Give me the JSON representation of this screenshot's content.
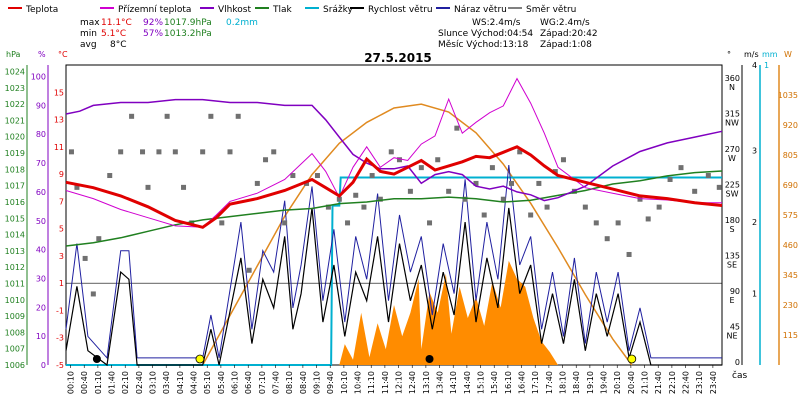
{
  "chart_data": {
    "type": "line",
    "title": "27.5.2015",
    "legend": [
      {
        "name": "Teplota",
        "color": "#e00000"
      },
      {
        "name": "Přízemní teplota",
        "color": "#d000d0"
      },
      {
        "name": "Vlhkost",
        "color": "#8000c0"
      },
      {
        "name": "Tlak",
        "color": "#208020"
      },
      {
        "name": "Srážky",
        "color": "#00b0d0"
      },
      {
        "name": "Rychlost větru",
        "color": "#000000"
      },
      {
        "name": "Náraz větru",
        "color": "#2020a0"
      },
      {
        "name": "Směr větru",
        "color": "#808080"
      }
    ],
    "stats": {
      "max_label": "max",
      "max_temp": "11.1°C",
      "max_hum": "92%",
      "max_press": "1017.9hPa",
      "max_rain": "0.2mm",
      "min_label": "min",
      "min_temp": "5.1°C",
      "min_hum": "57%",
      "min_press": "1013.2hPa",
      "avg_label": "avg",
      "avg_temp": "8°C"
    },
    "info": {
      "ws": "WS:2.4m/s",
      "wg": "WG:2.4m/s",
      "sun": "Slunce Východ:04:54",
      "sun_set": "Západ:20:42",
      "moon": "Měsíc Východ:13:18",
      "moon_set": "Západ:1:08"
    },
    "axes": {
      "hpa_unit": "hPa",
      "pct_unit": "%",
      "degc_unit": "°C",
      "deg_unit": "°",
      "ms_unit": "m/s",
      "mm_unit": "mm",
      "w_unit": "W",
      "time_label": "čas",
      "hpa_ticks": [
        "1024",
        "1023",
        "1022",
        "1021",
        "1020",
        "1019",
        "1018",
        "1017",
        "1016",
        "1015",
        "1014",
        "1013",
        "1012",
        "1011",
        "1010",
        "1009",
        "1008",
        "1007",
        "1006"
      ],
      "pct_ticks": [
        "100",
        "90",
        "80",
        "70",
        "60",
        "50",
        "40",
        "30",
        "20",
        "10",
        "0"
      ],
      "degc_ticks": [
        "15",
        "13",
        "11",
        "9",
        "7",
        "5",
        "3",
        "1",
        "-1",
        "-3",
        "-5"
      ],
      "deg_ticks": [
        "360",
        "315",
        "270",
        "225",
        "180",
        "135",
        "90",
        "45",
        "0"
      ],
      "dir_ticks": [
        "N",
        "NW",
        "W",
        "SW",
        "S",
        "SE",
        "E",
        "NE",
        ""
      ],
      "ms_ticks": [
        "3",
        "2",
        "1"
      ],
      "ms_top": "4",
      "mm_top": "1",
      "w_ticks": [
        "1035",
        "920",
        "805",
        "690",
        "575",
        "460",
        "345",
        "230",
        "115"
      ],
      "time_ticks": [
        "00:10",
        "00:40",
        "01:10",
        "01:40",
        "02:10",
        "02:40",
        "03:10",
        "03:40",
        "04:10",
        "04:40",
        "05:10",
        "05:40",
        "06:10",
        "06:40",
        "07:10",
        "07:40",
        "08:10",
        "08:40",
        "09:10",
        "09:40",
        "10:10",
        "10:40",
        "11:10",
        "11:40",
        "12:10",
        "12:40",
        "13:10",
        "13:40",
        "14:10",
        "14:40",
        "15:10",
        "15:40",
        "16:10",
        "16:40",
        "17:10",
        "17:40",
        "18:10",
        "18:40",
        "19:10",
        "19:40",
        "20:10",
        "20:40",
        "21:10",
        "21:40",
        "22:10",
        "22:40",
        "23:10",
        "23:40"
      ]
    },
    "ranges": {
      "hours": [
        0,
        24
      ],
      "temp": [
        -5,
        17
      ],
      "hum": [
        0,
        104
      ],
      "press": [
        1006,
        1024.4
      ],
      "wind": [
        0,
        4.2
      ],
      "dir": [
        0,
        380
      ],
      "rad": [
        0,
        1150
      ],
      "rain": [
        0,
        1
      ]
    },
    "temperature": [
      [
        0,
        8.4
      ],
      [
        1,
        8.0
      ],
      [
        2,
        7.4
      ],
      [
        3,
        6.6
      ],
      [
        4,
        5.6
      ],
      [
        5,
        5.1
      ],
      [
        5.5,
        5.8
      ],
      [
        6,
        6.8
      ],
      [
        7,
        7.2
      ],
      [
        8,
        7.8
      ],
      [
        9,
        8.6
      ],
      [
        9.5,
        8.0
      ],
      [
        10,
        7.4
      ],
      [
        10.5,
        8.4
      ],
      [
        11,
        10.1
      ],
      [
        11.5,
        9.2
      ],
      [
        12,
        9.0
      ],
      [
        12.5,
        9.5
      ],
      [
        13,
        10.0
      ],
      [
        13.5,
        9.3
      ],
      [
        14,
        9.6
      ],
      [
        14.5,
        9.9
      ],
      [
        15,
        10.3
      ],
      [
        15.5,
        10.2
      ],
      [
        16,
        10.6
      ],
      [
        16.5,
        11.0
      ],
      [
        17,
        10.4
      ],
      [
        17.5,
        9.6
      ],
      [
        18,
        8.9
      ],
      [
        19,
        8.4
      ],
      [
        20,
        7.9
      ],
      [
        21,
        7.4
      ],
      [
        22,
        7.2
      ],
      [
        23,
        6.9
      ],
      [
        24,
        6.7
      ]
    ],
    "ground_temperature": [
      [
        0,
        7.8
      ],
      [
        1,
        7.2
      ],
      [
        2,
        6.4
      ],
      [
        3,
        5.8
      ],
      [
        4,
        5.2
      ],
      [
        5,
        5.1
      ],
      [
        5.5,
        6.0
      ],
      [
        6,
        7.0
      ],
      [
        7,
        7.6
      ],
      [
        8,
        8.6
      ],
      [
        9,
        10.5
      ],
      [
        9.5,
        9.2
      ],
      [
        10,
        7.3
      ],
      [
        10.5,
        9.5
      ],
      [
        11,
        11.0
      ],
      [
        11.5,
        9.5
      ],
      [
        12,
        10.2
      ],
      [
        12.5,
        10.0
      ],
      [
        13,
        11.2
      ],
      [
        13.5,
        11.8
      ],
      [
        14,
        14.5
      ],
      [
        14.5,
        12.0
      ],
      [
        15,
        12.8
      ],
      [
        15.5,
        13.5
      ],
      [
        16,
        14.0
      ],
      [
        16.5,
        16.0
      ],
      [
        17,
        14.2
      ],
      [
        17.5,
        12.0
      ],
      [
        18,
        9.5
      ],
      [
        19,
        8.0
      ],
      [
        20,
        7.6
      ],
      [
        21,
        7.2
      ],
      [
        22,
        7.1
      ],
      [
        23,
        6.9
      ],
      [
        24,
        6.9
      ]
    ],
    "humidity": [
      [
        0,
        87
      ],
      [
        0.5,
        88
      ],
      [
        1,
        90
      ],
      [
        2,
        91
      ],
      [
        3,
        91
      ],
      [
        4,
        92
      ],
      [
        5,
        92
      ],
      [
        6,
        91
      ],
      [
        7,
        91
      ],
      [
        8,
        90
      ],
      [
        9,
        90
      ],
      [
        9.5,
        85
      ],
      [
        10,
        79
      ],
      [
        10.5,
        73
      ],
      [
        11,
        70
      ],
      [
        11.5,
        68
      ],
      [
        12,
        68
      ],
      [
        12.5,
        69
      ],
      [
        13,
        63
      ],
      [
        13.5,
        66
      ],
      [
        14,
        67
      ],
      [
        14.5,
        66
      ],
      [
        15,
        62
      ],
      [
        15.5,
        61
      ],
      [
        16,
        62
      ],
      [
        16.5,
        60
      ],
      [
        17,
        59
      ],
      [
        17.5,
        57
      ],
      [
        18,
        58
      ],
      [
        19,
        62
      ],
      [
        20,
        69
      ],
      [
        21,
        74
      ],
      [
        22,
        77
      ],
      [
        23,
        79
      ],
      [
        24,
        81
      ]
    ],
    "pressure": [
      [
        0,
        1013.3
      ],
      [
        1,
        1013.5
      ],
      [
        2,
        1013.8
      ],
      [
        3,
        1014.2
      ],
      [
        4,
        1014.6
      ],
      [
        5,
        1014.9
      ],
      [
        6,
        1015.1
      ],
      [
        7,
        1015.3
      ],
      [
        8,
        1015.5
      ],
      [
        9,
        1015.6
      ],
      [
        10,
        1015.9
      ],
      [
        11,
        1016.0
      ],
      [
        12,
        1016.2
      ],
      [
        13,
        1016.2
      ],
      [
        14,
        1016.3
      ],
      [
        15,
        1016.2
      ],
      [
        16,
        1016.0
      ],
      [
        17,
        1016.1
      ],
      [
        18,
        1016.4
      ],
      [
        19,
        1016.7
      ],
      [
        20,
        1017.1
      ],
      [
        21,
        1017.3
      ],
      [
        22,
        1017.6
      ],
      [
        23,
        1017.8
      ],
      [
        24,
        1017.9
      ]
    ],
    "wind_speed": [
      [
        0,
        0.2
      ],
      [
        0.4,
        1.1
      ],
      [
        0.8,
        0.2
      ],
      [
        1.5,
        0.0
      ],
      [
        2,
        1.3
      ],
      [
        2.3,
        1.2
      ],
      [
        2.6,
        0.0
      ],
      [
        5,
        0.0
      ],
      [
        5.3,
        0.5
      ],
      [
        5.6,
        0.0
      ],
      [
        6.4,
        1.5
      ],
      [
        6.8,
        0.3
      ],
      [
        7.2,
        1.2
      ],
      [
        7.6,
        0.8
      ],
      [
        8.0,
        1.8
      ],
      [
        8.3,
        0.5
      ],
      [
        8.6,
        1.0
      ],
      [
        9.0,
        2.2
      ],
      [
        9.4,
        0.6
      ],
      [
        9.8,
        1.4
      ],
      [
        10.2,
        0.4
      ],
      [
        10.6,
        1.3
      ],
      [
        11.0,
        0.9
      ],
      [
        11.4,
        1.8
      ],
      [
        11.8,
        0.6
      ],
      [
        12.2,
        1.7
      ],
      [
        12.6,
        0.9
      ],
      [
        13.0,
        1.4
      ],
      [
        13.4,
        0.5
      ],
      [
        13.8,
        1.3
      ],
      [
        14.2,
        0.7
      ],
      [
        14.6,
        2.0
      ],
      [
        15.0,
        0.6
      ],
      [
        15.4,
        1.5
      ],
      [
        15.8,
        0.8
      ],
      [
        16.2,
        2.2
      ],
      [
        16.6,
        1.0
      ],
      [
        17.0,
        1.4
      ],
      [
        17.4,
        0.3
      ],
      [
        17.8,
        1.0
      ],
      [
        18.2,
        0.3
      ],
      [
        18.6,
        1.2
      ],
      [
        19.0,
        0.2
      ],
      [
        19.4,
        1.0
      ],
      [
        19.8,
        0.4
      ],
      [
        20.2,
        1.0
      ],
      [
        20.6,
        0.1
      ],
      [
        21.0,
        0.6
      ],
      [
        21.4,
        0.0
      ],
      [
        24,
        0.0
      ]
    ],
    "wind_gust": [
      [
        0,
        0.5
      ],
      [
        0.4,
        1.7
      ],
      [
        0.8,
        0.4
      ],
      [
        1.5,
        0.1
      ],
      [
        2,
        1.6
      ],
      [
        2.3,
        1.6
      ],
      [
        2.6,
        0.1
      ],
      [
        5,
        0.1
      ],
      [
        5.3,
        0.7
      ],
      [
        5.6,
        0.1
      ],
      [
        6.4,
        2.0
      ],
      [
        6.8,
        0.5
      ],
      [
        7.2,
        1.6
      ],
      [
        7.6,
        1.3
      ],
      [
        8.0,
        2.3
      ],
      [
        8.3,
        0.8
      ],
      [
        8.6,
        1.4
      ],
      [
        9.0,
        2.5
      ],
      [
        9.4,
        0.9
      ],
      [
        9.8,
        1.9
      ],
      [
        10.2,
        0.6
      ],
      [
        10.6,
        1.8
      ],
      [
        11.0,
        1.2
      ],
      [
        11.4,
        2.4
      ],
      [
        11.8,
        0.9
      ],
      [
        12.2,
        2.1
      ],
      [
        12.6,
        1.3
      ],
      [
        13.0,
        1.8
      ],
      [
        13.4,
        0.7
      ],
      [
        13.8,
        1.7
      ],
      [
        14.2,
        1.0
      ],
      [
        14.6,
        2.6
      ],
      [
        15.0,
        0.9
      ],
      [
        15.4,
        2.0
      ],
      [
        15.8,
        1.2
      ],
      [
        16.2,
        2.8
      ],
      [
        16.6,
        1.4
      ],
      [
        17.0,
        1.8
      ],
      [
        17.4,
        0.5
      ],
      [
        17.8,
        1.3
      ],
      [
        18.2,
        0.4
      ],
      [
        18.6,
        1.5
      ],
      [
        19.0,
        0.3
      ],
      [
        19.4,
        1.3
      ],
      [
        19.8,
        0.6
      ],
      [
        20.2,
        1.3
      ],
      [
        20.6,
        0.2
      ],
      [
        21.0,
        0.8
      ],
      [
        21.4,
        0.1
      ],
      [
        24,
        0.1
      ]
    ],
    "wind_direction": [
      [
        0.2,
        270
      ],
      [
        0.4,
        225
      ],
      [
        0.7,
        135
      ],
      [
        1.0,
        90
      ],
      [
        1.2,
        160
      ],
      [
        1.6,
        240
      ],
      [
        2.0,
        270
      ],
      [
        2.4,
        315
      ],
      [
        2.8,
        270
      ],
      [
        3.0,
        225
      ],
      [
        3.4,
        270
      ],
      [
        3.7,
        315
      ],
      [
        4.0,
        270
      ],
      [
        4.3,
        225
      ],
      [
        4.6,
        180
      ],
      [
        5.0,
        270
      ],
      [
        5.3,
        315
      ],
      [
        5.7,
        180
      ],
      [
        6.0,
        270
      ],
      [
        6.3,
        315
      ],
      [
        6.7,
        120
      ],
      [
        7.0,
        230
      ],
      [
        7.3,
        260
      ],
      [
        7.6,
        270
      ],
      [
        8.0,
        180
      ],
      [
        8.3,
        240
      ],
      [
        8.8,
        230
      ],
      [
        9.2,
        240
      ],
      [
        9.6,
        200
      ],
      [
        10.0,
        210
      ],
      [
        10.3,
        180
      ],
      [
        10.6,
        215
      ],
      [
        10.9,
        200
      ],
      [
        11.2,
        240
      ],
      [
        11.5,
        210
      ],
      [
        11.9,
        270
      ],
      [
        12.2,
        260
      ],
      [
        12.6,
        220
      ],
      [
        13.0,
        250
      ],
      [
        13.3,
        180
      ],
      [
        13.6,
        260
      ],
      [
        14.0,
        220
      ],
      [
        14.3,
        300
      ],
      [
        14.6,
        210
      ],
      [
        15.0,
        230
      ],
      [
        15.3,
        190
      ],
      [
        15.6,
        250
      ],
      [
        16.0,
        210
      ],
      [
        16.3,
        230
      ],
      [
        16.6,
        270
      ],
      [
        17.0,
        190
      ],
      [
        17.3,
        230
      ],
      [
        17.6,
        200
      ],
      [
        17.9,
        245
      ],
      [
        18.2,
        260
      ],
      [
        18.6,
        220
      ],
      [
        19.0,
        200
      ],
      [
        19.4,
        180
      ],
      [
        19.8,
        160
      ],
      [
        20.2,
        180
      ],
      [
        20.6,
        140
      ],
      [
        21.0,
        210
      ],
      [
        21.3,
        185
      ],
      [
        21.7,
        200
      ],
      [
        22.1,
        235
      ],
      [
        22.5,
        250
      ],
      [
        23.0,
        220
      ],
      [
        23.5,
        240
      ],
      [
        23.9,
        225
      ]
    ],
    "solar_radiation": [
      [
        0,
        0
      ],
      [
        10,
        0
      ],
      [
        10.2,
        80
      ],
      [
        10.5,
        20
      ],
      [
        10.8,
        200
      ],
      [
        11.1,
        30
      ],
      [
        11.4,
        160
      ],
      [
        11.7,
        60
      ],
      [
        12.0,
        230
      ],
      [
        12.3,
        110
      ],
      [
        12.6,
        200
      ],
      [
        12.9,
        330
      ],
      [
        13.0,
        60
      ],
      [
        13.3,
        280
      ],
      [
        13.6,
        200
      ],
      [
        13.9,
        350
      ],
      [
        14.1,
        120
      ],
      [
        14.4,
        300
      ],
      [
        14.7,
        180
      ],
      [
        15.0,
        260
      ],
      [
        15.3,
        150
      ],
      [
        15.6,
        320
      ],
      [
        15.9,
        220
      ],
      [
        16.2,
        400
      ],
      [
        16.5,
        330
      ],
      [
        16.8,
        300
      ],
      [
        17.1,
        180
      ],
      [
        17.4,
        90
      ],
      [
        17.7,
        50
      ],
      [
        18.0,
        0
      ],
      [
        24,
        0
      ]
    ],
    "clear_sky_radiation": [
      [
        5.0,
        0
      ],
      [
        6,
        190
      ],
      [
        7,
        380
      ],
      [
        8,
        570
      ],
      [
        9,
        730
      ],
      [
        10,
        850
      ],
      [
        11,
        930
      ],
      [
        12,
        985
      ],
      [
        13,
        1000
      ],
      [
        14,
        970
      ],
      [
        15,
        890
      ],
      [
        16,
        770
      ],
      [
        17,
        620
      ],
      [
        18,
        450
      ],
      [
        19,
        270
      ],
      [
        20,
        100
      ],
      [
        20.7,
        0
      ]
    ],
    "rain_total": [
      [
        0,
        0
      ],
      [
        9.7,
        0
      ],
      [
        9.75,
        0.85
      ],
      [
        10.0,
        0.85
      ],
      [
        10.05,
        1.0
      ],
      [
        24,
        1.0
      ]
    ],
    "sun_events": [
      [
        4.9,
        "sunrise"
      ],
      [
        20.7,
        "sunset"
      ]
    ],
    "moon_events": [
      [
        1.13,
        "moonset"
      ],
      [
        13.3,
        "moonrise"
      ]
    ]
  }
}
